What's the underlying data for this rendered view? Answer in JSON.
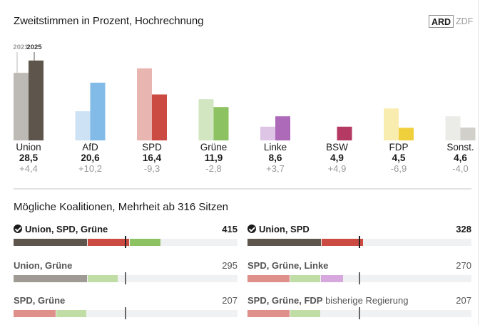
{
  "header": {
    "title": "Zweitstimmen in Prozent, Hochrechnung",
    "sources": [
      {
        "label": "ARD",
        "active": true
      },
      {
        "label": "ZDF",
        "active": false
      }
    ]
  },
  "chart_data": {
    "type": "bar",
    "title": "Zweitstimmen in Prozent, Hochrechnung",
    "series": [
      {
        "name": "2021",
        "values": [
          24.1,
          10.4,
          25.7,
          14.7,
          4.9,
          0.0,
          11.4,
          8.6
        ]
      },
      {
        "name": "2025",
        "values": [
          28.5,
          20.6,
          16.4,
          11.9,
          8.6,
          4.9,
          4.5,
          4.6
        ]
      }
    ],
    "categories": [
      "Union",
      "AfD",
      "SPD",
      "Grüne",
      "Linke",
      "BSW",
      "FDP",
      "Sonst."
    ],
    "value_labels": [
      "28,5",
      "20,6",
      "16,4",
      "11,9",
      "8,6",
      "4,9",
      "4,5",
      "4,6"
    ],
    "diff_labels": [
      "+4,4",
      "+10,2",
      "-9,3",
      "-2,8",
      "+3,7",
      "+4,9",
      "-6,9",
      "-4,0"
    ],
    "colors_2025": [
      "#5e554d",
      "#82bbe8",
      "#cb4b43",
      "#8dc262",
      "#ac6ab9",
      "#b43a63",
      "#efd03c",
      "#d1d0ca"
    ],
    "colors_2021": [
      "#bdbab5",
      "#cde3f5",
      "#e9b5b1",
      "#d2e6c1",
      "#dfc5e5",
      "#e0b1c2",
      "#f8ecae",
      "#ebebe7"
    ],
    "legend": [
      "2021",
      "2025"
    ],
    "ylim": [
      0,
      30
    ],
    "grid": false
  },
  "coalitions": {
    "title": "Mögliche Koalitionen, Mehrheit ab 316 Sitzen",
    "majority": 316,
    "total_seats": 630,
    "items": [
      {
        "name": "Union, SPD, Grüne",
        "note": "",
        "seats": "415",
        "majority": true,
        "segments": [
          {
            "party": "Union",
            "seats": 208,
            "color": "#5e554d"
          },
          {
            "party": "SPD",
            "seats": 120,
            "color": "#cb4b43"
          },
          {
            "party": "Grüne",
            "seats": 87,
            "color": "#8dc262"
          }
        ]
      },
      {
        "name": "Union, SPD",
        "note": "",
        "seats": "328",
        "majority": true,
        "segments": [
          {
            "party": "Union",
            "seats": 208,
            "color": "#5e554d"
          },
          {
            "party": "SPD",
            "seats": 120,
            "color": "#cb4b43"
          }
        ]
      },
      {
        "name": "Union, Grüne",
        "note": "",
        "seats": "295",
        "majority": false,
        "segments": [
          {
            "party": "Union",
            "seats": 208,
            "color": "#a09a95"
          },
          {
            "party": "Grüne",
            "seats": 87,
            "color": "#bfdda5"
          }
        ]
      },
      {
        "name": "SPD, Grüne, Linke",
        "note": "",
        "seats": "270",
        "majority": false,
        "segments": [
          {
            "party": "SPD",
            "seats": 120,
            "color": "#e0908b"
          },
          {
            "party": "Grüne",
            "seats": 87,
            "color": "#bfdda5"
          },
          {
            "party": "Linke",
            "seats": 63,
            "color": "#d6a8dd"
          }
        ]
      },
      {
        "name": "SPD, Grüne",
        "note": "",
        "seats": "207",
        "majority": false,
        "segments": [
          {
            "party": "SPD",
            "seats": 120,
            "color": "#e0908b"
          },
          {
            "party": "Grüne",
            "seats": 87,
            "color": "#bfdda5"
          }
        ]
      },
      {
        "name": "SPD, Grüne, FDP",
        "note": "bisherige Regierung",
        "seats": "207",
        "majority": false,
        "segments": [
          {
            "party": "SPD",
            "seats": 120,
            "color": "#e0908b"
          },
          {
            "party": "Grüne",
            "seats": 87,
            "color": "#bfdda5"
          },
          {
            "party": "FDP",
            "seats": 0,
            "color": "#f3e08a"
          }
        ]
      }
    ]
  }
}
